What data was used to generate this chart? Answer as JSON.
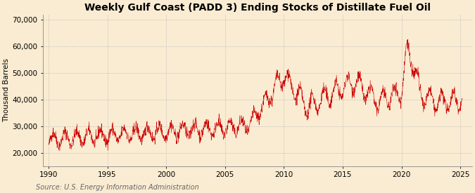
{
  "title": "Weekly Gulf Coast (PADD 3) Ending Stocks of Distillate Fuel Oil",
  "ylabel": "Thousand Barrels",
  "source": "Source: U.S. Energy Information Administration",
  "line_color": "#cc0000",
  "background_color": "#faecd2",
  "plot_bg_color": "#faecd2",
  "xlim": [
    1989.5,
    2026
  ],
  "ylim": [
    15000,
    72000
  ],
  "yticks": [
    20000,
    30000,
    40000,
    50000,
    60000,
    70000
  ],
  "ytick_labels": [
    "20,000",
    "30,000",
    "40,000",
    "50,000",
    "60,000",
    "70,000"
  ],
  "xticks": [
    1990,
    1995,
    2000,
    2005,
    2010,
    2015,
    2020,
    2025
  ],
  "grid_color": "#bbbbbb",
  "title_fontsize": 10,
  "axis_fontsize": 7.5,
  "source_fontsize": 7
}
